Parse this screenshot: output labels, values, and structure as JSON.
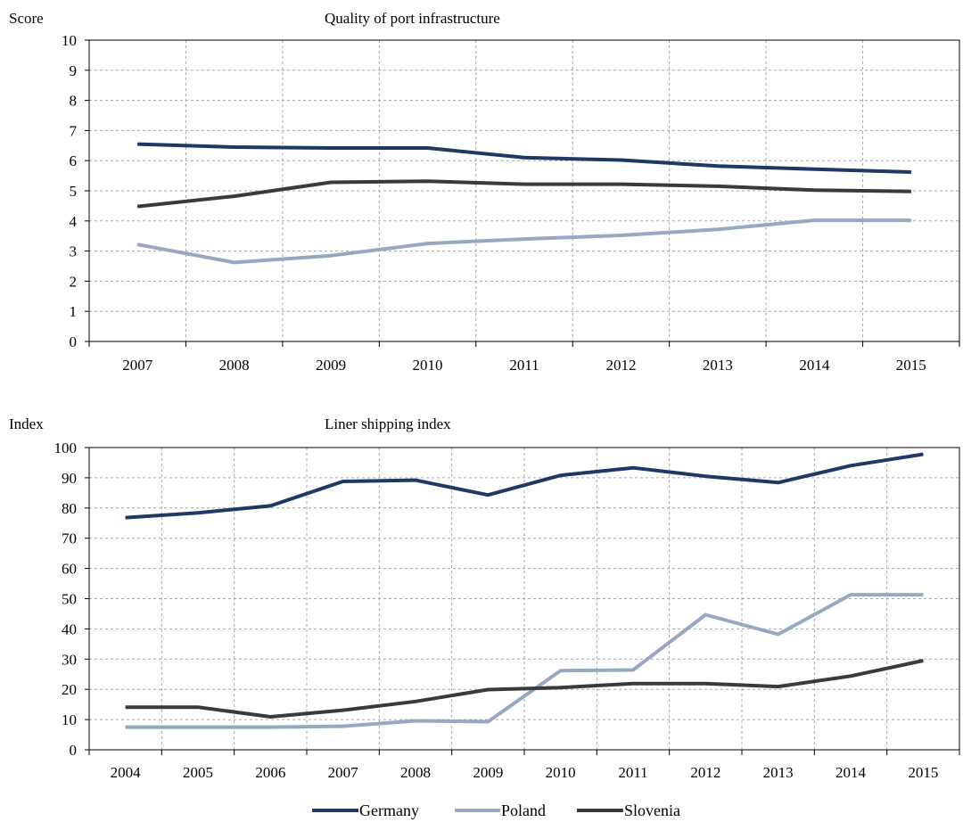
{
  "chart_data": [
    {
      "type": "line",
      "title": "Quality  of port infrastructure",
      "ylabel": "Score",
      "xlabel": "",
      "categories": [
        "2007",
        "2008",
        "2009",
        "2010",
        "2011",
        "2012",
        "2013",
        "2014",
        "2015"
      ],
      "ylim": [
        0,
        10
      ],
      "yticks": [
        0,
        1,
        2,
        3,
        4,
        5,
        6,
        7,
        8,
        9,
        10
      ],
      "grid": true,
      "series": [
        {
          "name": "Germany",
          "color": "#1f3864",
          "values": [
            6.55,
            6.45,
            6.42,
            6.42,
            6.1,
            6.02,
            5.82,
            5.72,
            5.62
          ]
        },
        {
          "name": "Poland",
          "color": "#98a8c0",
          "values": [
            3.22,
            2.62,
            2.85,
            3.25,
            3.4,
            3.52,
            3.72,
            4.02,
            4.02
          ]
        },
        {
          "name": "Slovenia",
          "color": "#3a3a3a",
          "values": [
            4.48,
            4.82,
            5.28,
            5.32,
            5.22,
            5.22,
            5.15,
            5.02,
            4.98
          ]
        }
      ]
    },
    {
      "type": "line",
      "title": "Liner shipping index",
      "ylabel": "Index",
      "xlabel": "",
      "categories": [
        "2004",
        "2005",
        "2006",
        "2007",
        "2008",
        "2009",
        "2010",
        "2011",
        "2012",
        "2013",
        "2014",
        "2015"
      ],
      "ylim": [
        0,
        100
      ],
      "yticks": [
        0,
        10,
        20,
        30,
        40,
        50,
        60,
        70,
        80,
        90,
        100
      ],
      "grid": true,
      "series": [
        {
          "name": "Germany",
          "color": "#1f3864",
          "values": [
            76.8,
            78.4,
            80.7,
            88.8,
            89.2,
            84.3,
            90.8,
            93.3,
            90.5,
            88.4,
            94,
            97.8
          ]
        },
        {
          "name": "Poland",
          "color": "#98a8c0",
          "values": [
            7.5,
            7.5,
            7.5,
            7.8,
            9.6,
            9.3,
            26.2,
            26.4,
            44.7,
            38.2,
            51.3,
            51.3
          ]
        },
        {
          "name": "Slovenia",
          "color": "#3a3a3a",
          "values": [
            14.1,
            14.1,
            10.9,
            13.1,
            16,
            19.9,
            20.6,
            21.9,
            21.9,
            20.9,
            24.4,
            29.5
          ]
        }
      ]
    }
  ],
  "legend": {
    "placement": "bottom-center",
    "items": [
      {
        "name": "Germany",
        "color": "#1f3864"
      },
      {
        "name": "Poland",
        "color": "#98a8c0"
      },
      {
        "name": "Slovenia",
        "color": "#3a3a3a"
      }
    ]
  }
}
